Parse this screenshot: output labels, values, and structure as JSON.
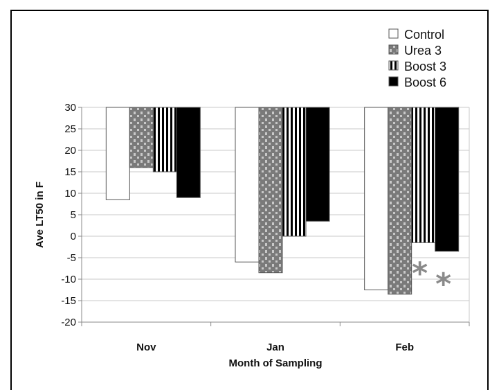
{
  "chart_data": {
    "type": "bar",
    "title": "",
    "xlabel": "Month of Sampling",
    "ylabel": "Ave LT50 in F",
    "categories": [
      "Nov",
      "Jan",
      "Feb"
    ],
    "ylim": [
      -20,
      30
    ],
    "yticks": [
      30,
      25,
      20,
      15,
      10,
      5,
      0,
      -5,
      -10,
      -15,
      -20
    ],
    "baseline": 30,
    "grid": true,
    "legend_position": "top-right",
    "series": [
      {
        "name": "Control",
        "values": [
          8.5,
          -6,
          -12.5
        ],
        "fill": "#ffffff",
        "pattern": "none"
      },
      {
        "name": "Urea 3",
        "values": [
          16,
          -8.5,
          -13.5
        ],
        "fill": "#7a7a7a",
        "pattern": "dots"
      },
      {
        "name": "Boost 3",
        "values": [
          15,
          0,
          -1.5
        ],
        "fill": "#ffffff",
        "pattern": "vertical-stripes"
      },
      {
        "name": "Boost 6",
        "values": [
          9,
          3.5,
          -3.5
        ],
        "fill": "#000000",
        "pattern": "none"
      }
    ],
    "annotations": [
      {
        "text": "*",
        "category": "Feb",
        "y": -7.5,
        "color": "#8a8a8a"
      },
      {
        "text": "*",
        "category": "Feb",
        "y": -10,
        "color": "#8a8a8a"
      }
    ]
  }
}
